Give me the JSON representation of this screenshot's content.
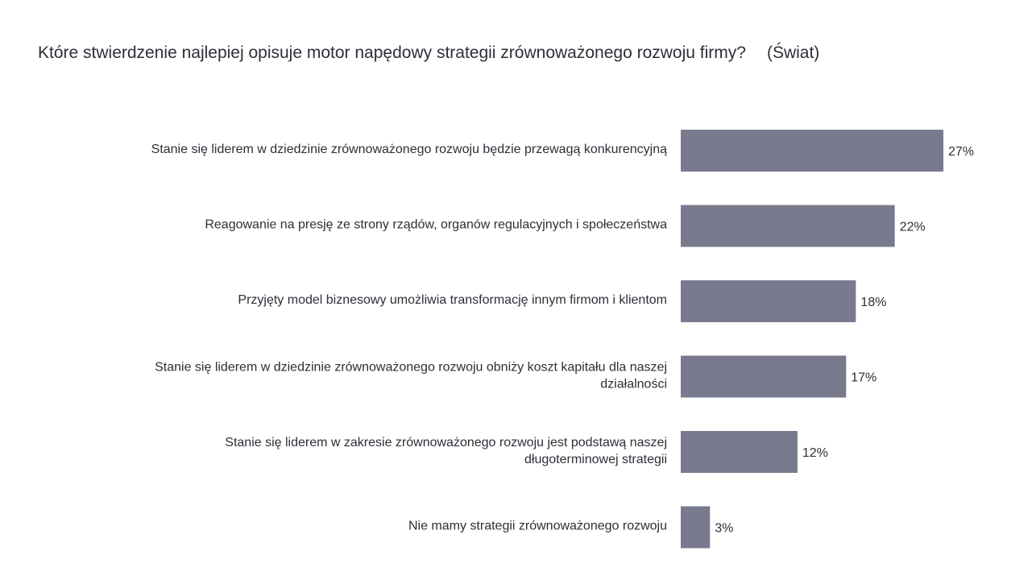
{
  "chart_data": {
    "type": "bar",
    "orientation": "horizontal",
    "title": "Które stwierdzenie najlepiej opisuje motor napędowy strategii zrównoważonego rozwoju firmy?",
    "subtitle": "(Świat)",
    "categories": [
      [
        "Stanie się liderem w dziedzinie zrównoważonego rozwoju będzie przewagą konkurencyjną"
      ],
      [
        "Reagowanie na presję ze strony rządów, organów regulacyjnych i społeczeństwa"
      ],
      [
        "Przyjęty model biznesowy umożliwia transformację innym firmom i klientom"
      ],
      [
        "Stanie się liderem w dziedzinie zrównoważonego rozwoju obniży koszt kapitału dla naszej",
        "działalności"
      ],
      [
        "Stanie się liderem w zakresie zrównoważonego rozwoju jest podstawą naszej",
        "długoterminowej strategii"
      ],
      [
        "Nie mamy strategii zrównoważonego rozwoju"
      ]
    ],
    "values": [
      27,
      22,
      18,
      17,
      12,
      3
    ],
    "value_labels": [
      "27%",
      "22%",
      "18%",
      "17%",
      "12%",
      "3%"
    ],
    "unit": "%",
    "xlim": [
      0,
      27
    ],
    "grid": false,
    "legend": "none",
    "bar_color": "#7a7a8f",
    "text_color": "#2e2e38"
  }
}
